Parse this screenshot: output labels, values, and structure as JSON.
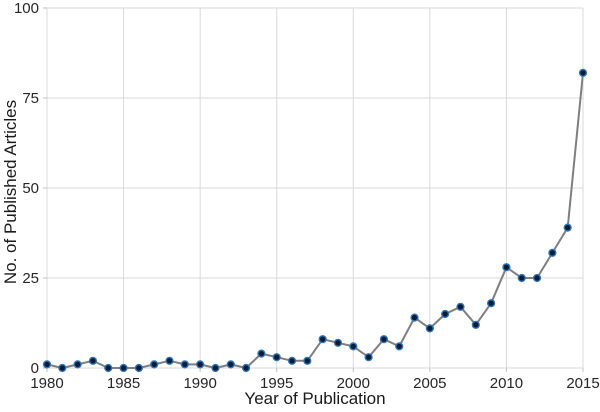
{
  "chart_data": {
    "type": "line",
    "title": "",
    "xlabel": "Year of Publication",
    "ylabel": "No. of Published Articles",
    "x": [
      1980,
      1981,
      1982,
      1983,
      1984,
      1985,
      1986,
      1987,
      1988,
      1989,
      1990,
      1991,
      1992,
      1993,
      1994,
      1995,
      1996,
      1997,
      1998,
      1999,
      2000,
      2001,
      2002,
      2003,
      2004,
      2005,
      2006,
      2007,
      2008,
      2009,
      2010,
      2011,
      2012,
      2013,
      2014,
      2015
    ],
    "series": [
      {
        "name": "No. of Published Articles",
        "values": [
          1,
          0,
          1,
          2,
          0,
          0,
          0,
          1,
          2,
          1,
          1,
          0,
          1,
          0,
          4,
          3,
          2,
          2,
          8,
          7,
          6,
          3,
          8,
          6,
          14,
          11,
          15,
          17,
          12,
          18,
          28,
          25,
          25,
          32,
          39,
          82
        ]
      }
    ],
    "xlim": [
      1980,
      2015
    ],
    "ylim": [
      0,
      100
    ],
    "xticks": [
      1980,
      1985,
      1990,
      1995,
      2000,
      2005,
      2010,
      2015
    ],
    "yticks": [
      0,
      25,
      50,
      75,
      100
    ],
    "grid": true,
    "legend": false,
    "colors": {
      "line": "#7f7f7f",
      "marker_fill": "#0c1c38",
      "marker_stroke": "#2e75b6",
      "gridline": "#d9d9d9",
      "tick_mark": "#bfbfbf",
      "axis_text": "#262626",
      "background": "#ffffff"
    }
  }
}
